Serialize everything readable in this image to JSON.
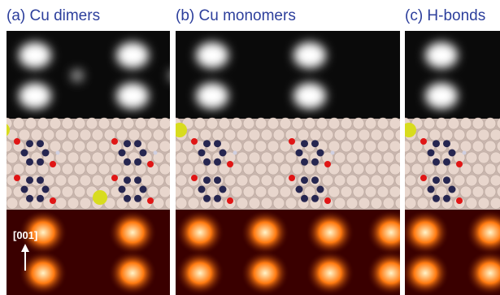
{
  "panels": [
    {
      "title": "(a) Cu dimers"
    },
    {
      "title": "(b) Cu monomers"
    },
    {
      "title": "(c) H-bonds"
    }
  ],
  "annotation": {
    "direction_label": "[001]"
  },
  "colors": {
    "title_text": "#2d3f9c",
    "stm_bright": "#ffffff",
    "stm_dark": "#0a0a0a",
    "substrate_atom": "#e8d6cd",
    "carbon_atom": "#262650",
    "oxygen_atom": "#e01515",
    "copper_adatom": "#d8dc1e",
    "hydrogen_atom": "#cfcfe0",
    "heat_bright": "#fff4c8",
    "heat_mid": "#ff7a10",
    "heat_dark": "#3a0000"
  }
}
